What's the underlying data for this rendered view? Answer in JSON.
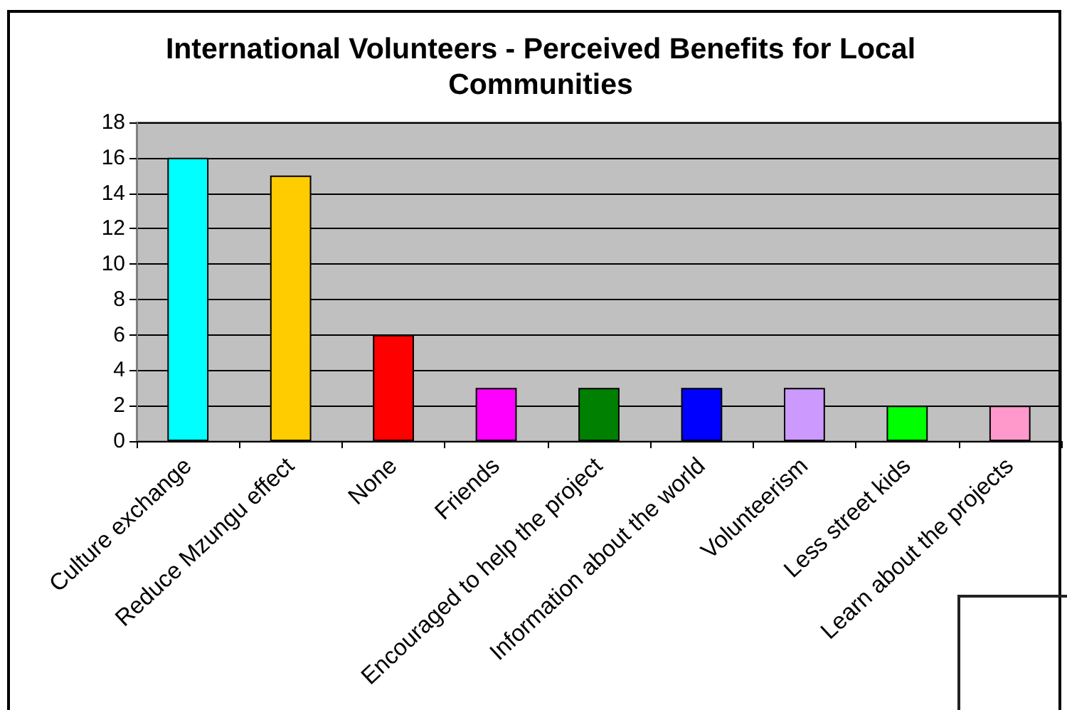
{
  "chart_data": {
    "type": "bar",
    "title": "International Volunteers - Perceived Benefits for Local Communities",
    "categories": [
      "Culture exchange",
      "Reduce Mzungu effect",
      "None",
      "Friends",
      "Encouraged to help the project",
      "Information about the world",
      "Volunteerism",
      "Less street kids",
      "Learn about the projects"
    ],
    "values": [
      16,
      15,
      6,
      3,
      3,
      3,
      3,
      2,
      2
    ],
    "colors": [
      "#00ffff",
      "#ffcc00",
      "#ff0000",
      "#ff00ff",
      "#008000",
      "#0000ff",
      "#cc99ff",
      "#00ff00",
      "#ff99cc"
    ],
    "ylim": [
      0,
      18
    ],
    "yticks": [
      0,
      2,
      4,
      6,
      8,
      10,
      12,
      14,
      16,
      18
    ],
    "grid": "y"
  }
}
